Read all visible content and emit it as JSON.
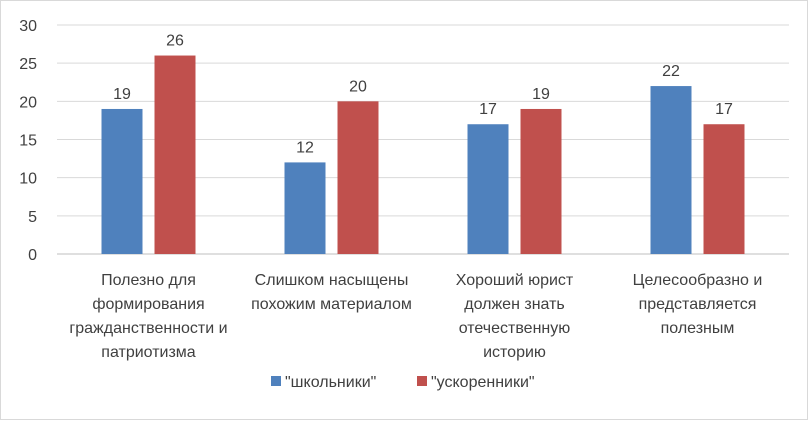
{
  "chart_data": {
    "type": "bar",
    "categories": [
      [
        "Полезно для",
        "формирования",
        "гражданственности и",
        "патриотизма"
      ],
      [
        "Слишком насыщены",
        "похожим материалом"
      ],
      [
        "Хороший юрист",
        "должен знать",
        "отечественную",
        "историю"
      ],
      [
        "Целесообразно и",
        "представляется",
        "полезным"
      ]
    ],
    "series": [
      {
        "name": "\"школьники\"",
        "values": [
          19,
          12,
          17,
          22
        ],
        "color": "#4f81bd"
      },
      {
        "name": "\"ускоренники\"",
        "values": [
          26,
          20,
          19,
          17
        ],
        "color": "#c0504d"
      }
    ],
    "ylim": [
      0,
      30
    ],
    "yticks": [
      0,
      5,
      10,
      15,
      20,
      25,
      30
    ],
    "grid": true,
    "legend": "bottom",
    "title": "",
    "xlabel": "",
    "ylabel": ""
  }
}
